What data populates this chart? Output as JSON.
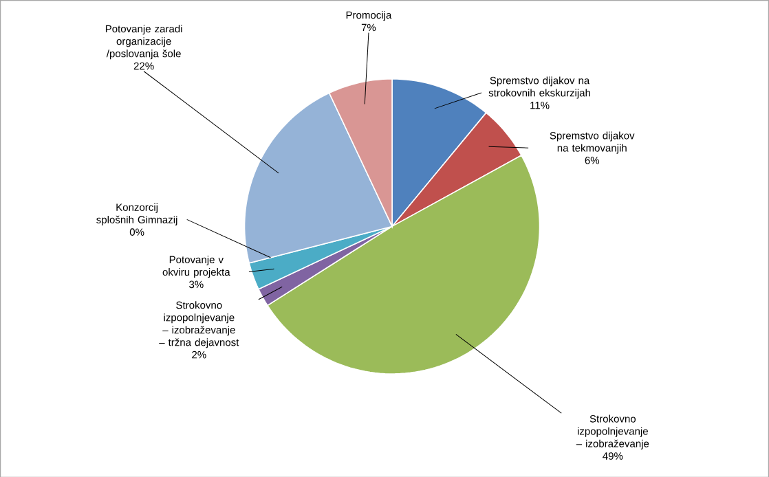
{
  "chart_data": {
    "type": "pie",
    "categories": [
      "Spremstvo dijakov na strokovnih ekskurzijah",
      "Spremstvo dijakov na tekmovanjih",
      "Strokovno izpopolnjevanje – izobraževanje",
      "Strokovno izpopolnjevanje – izobraževanje – tržna dejavnost",
      "Potovanje v okviru projekta",
      "Konzorcij splošnih Gimnazij",
      "Potovanje zaradi organizacije /poslovanja šole",
      "Promocija"
    ],
    "values": [
      11,
      6,
      49,
      2,
      3,
      0,
      22,
      7
    ],
    "value_labels": [
      "11%",
      "6%",
      "49%",
      "2%",
      "3%",
      "0%",
      "22%",
      "7%"
    ],
    "colors": [
      "#4f81bd",
      "#c0504d",
      "#9bbb59",
      "#8064a2",
      "#4bacc6",
      "#f79646",
      "#95b3d7",
      "#d99694"
    ]
  }
}
